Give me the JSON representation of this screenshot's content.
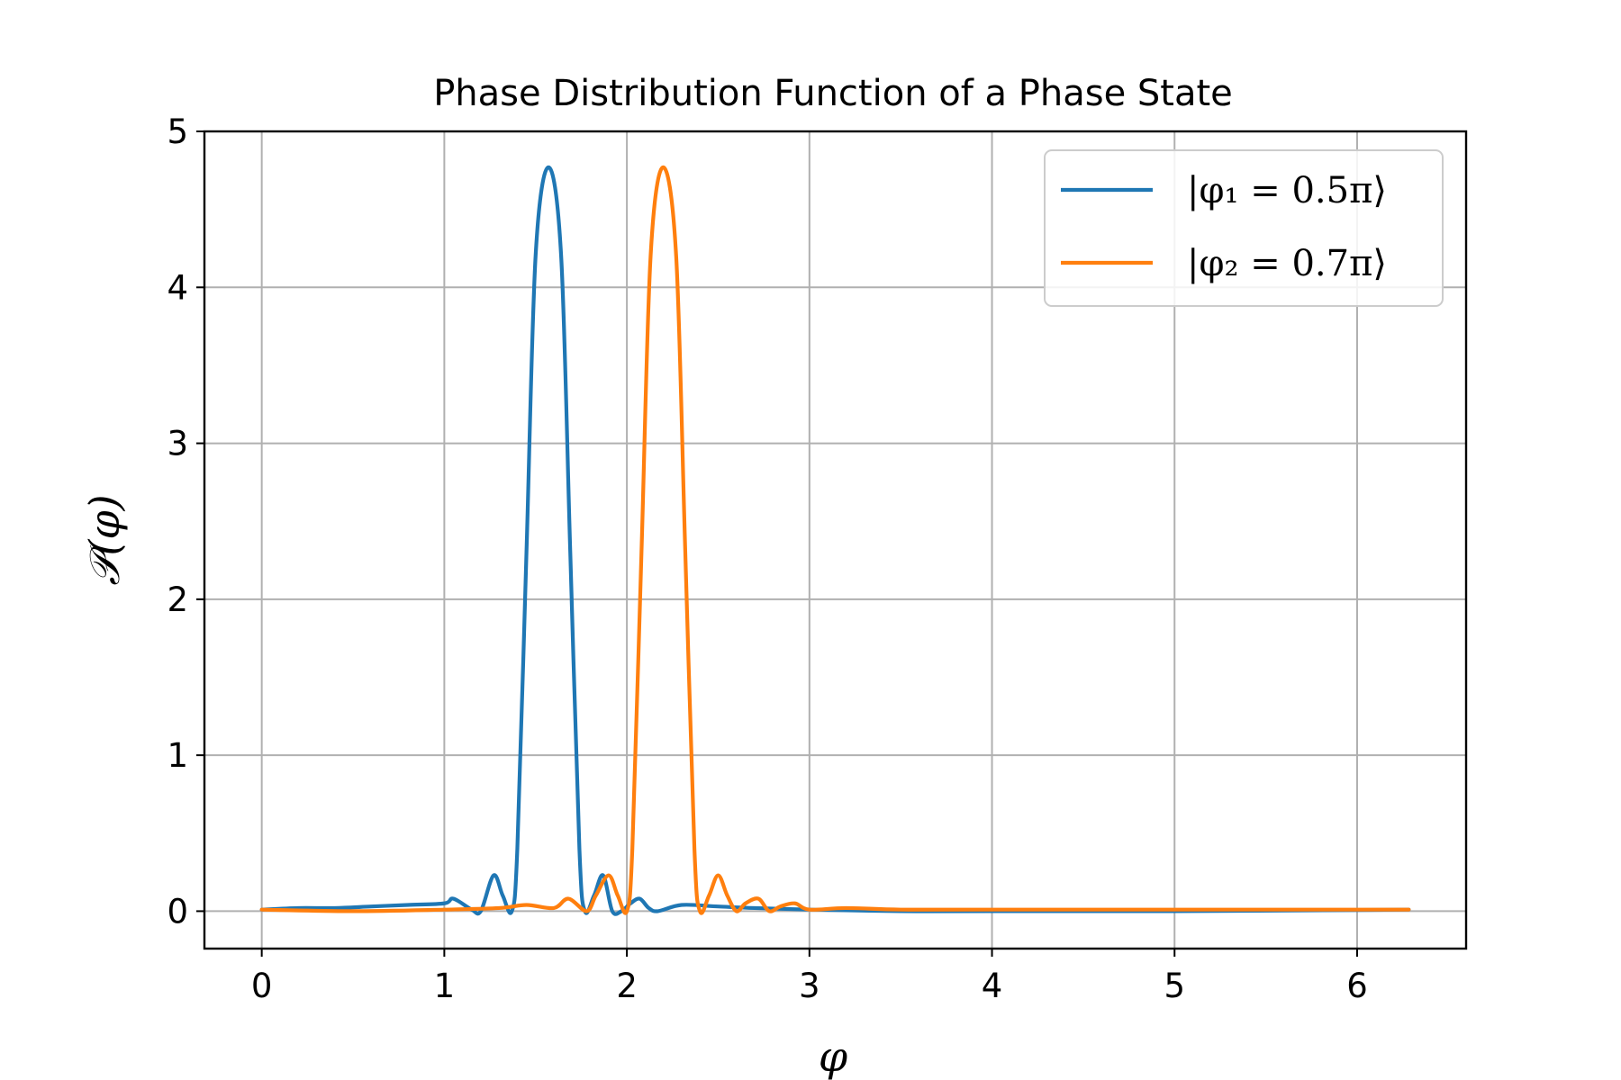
{
  "chart_data": {
    "type": "line",
    "title": "Phase Distribution Function of a Phase State",
    "xlabel": "φ",
    "ylabel": "𝒫(φ)",
    "xlim": [
      -0.314,
      6.597
    ],
    "ylim": [
      -0.24,
      5.0
    ],
    "xticks": [
      0,
      1,
      2,
      3,
      4,
      5,
      6
    ],
    "yticks": [
      0,
      1,
      2,
      3,
      4,
      5
    ],
    "grid": true,
    "legend_position": "top-right",
    "series": [
      {
        "name": "|φ₁ = 0.5π⟩",
        "color": "#1f77b4",
        "peak_x": 1.5708,
        "peak_y": 4.77,
        "x": [
          0,
          0.2,
          0.4,
          0.6,
          0.8,
          1.0,
          1.05,
          1.15,
          1.2,
          1.27,
          1.32,
          1.37,
          1.4,
          1.45,
          1.5,
          1.5708,
          1.64,
          1.69,
          1.74,
          1.77,
          1.82,
          1.87,
          1.92,
          1.97,
          2.02,
          2.07,
          2.12,
          2.17,
          2.3,
          2.5,
          2.7,
          3.0,
          3.5,
          4.0,
          5.0,
          6.283
        ],
        "y": [
          0.01,
          0.02,
          0.02,
          0.03,
          0.04,
          0.05,
          0.08,
          0.01,
          0.0,
          0.23,
          0.1,
          0.0,
          0.4,
          2.3,
          4.2,
          4.77,
          4.2,
          2.3,
          0.4,
          0.0,
          0.1,
          0.23,
          0.0,
          0.0,
          0.05,
          0.08,
          0.02,
          0.0,
          0.04,
          0.03,
          0.02,
          0.01,
          0.0,
          0.0,
          0.0,
          0.01
        ]
      },
      {
        "name": "|φ₂ = 0.7π⟩",
        "color": "#ff7f0e",
        "peak_x": 2.1991,
        "peak_y": 4.77,
        "x": [
          0,
          0.5,
          1.0,
          1.3,
          1.45,
          1.6,
          1.68,
          1.78,
          1.83,
          1.9,
          1.95,
          2.0,
          2.03,
          2.08,
          2.13,
          2.1991,
          2.27,
          2.32,
          2.37,
          2.4,
          2.45,
          2.5,
          2.55,
          2.6,
          2.65,
          2.72,
          2.78,
          2.84,
          2.92,
          3.0,
          3.2,
          3.5,
          4.0,
          5.0,
          6.283
        ],
        "y": [
          0.01,
          0.0,
          0.01,
          0.02,
          0.04,
          0.02,
          0.08,
          0.0,
          0.1,
          0.23,
          0.1,
          0.0,
          0.4,
          2.3,
          4.2,
          4.77,
          4.2,
          2.3,
          0.4,
          0.0,
          0.1,
          0.23,
          0.1,
          0.0,
          0.05,
          0.08,
          0.0,
          0.03,
          0.05,
          0.01,
          0.02,
          0.01,
          0.01,
          0.01,
          0.01
        ]
      }
    ]
  }
}
